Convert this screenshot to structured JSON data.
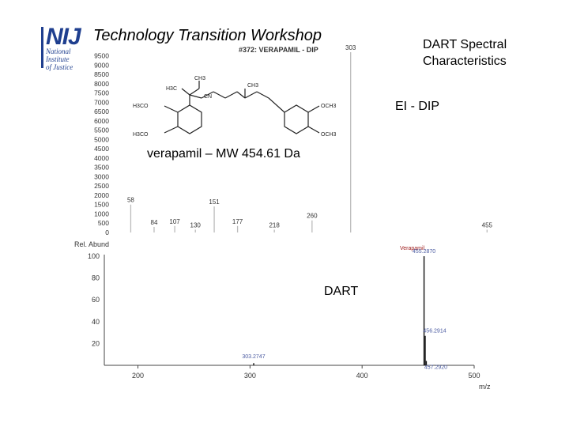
{
  "header": {
    "title": "Technology Transition Workshop",
    "logo_text": "NIJ",
    "logo_sub": [
      "National",
      "Institute",
      "of Justice"
    ]
  },
  "side_title": [
    "DART Spectral",
    "Characteristics"
  ],
  "molecule": {
    "caption": "verapamil – MW 454.61 Da",
    "groups": [
      "CH3",
      "H3C",
      "CN",
      "CH3",
      "H3CO",
      "H3CO",
      "OCH3",
      "OCH3"
    ]
  },
  "ei_label": "EI - DIP",
  "dart_label": "DART",
  "chart_data": [
    {
      "type": "bar",
      "title": "#372: VERAPAMIL - DIP",
      "ylim": [
        0,
        9700
      ],
      "yticks": [
        0,
        500,
        1000,
        1500,
        2000,
        2500,
        3000,
        3500,
        4000,
        4500,
        5000,
        5500,
        6000,
        6500,
        7000,
        7500,
        8000,
        8500,
        9000,
        9500
      ],
      "xlim": [
        40,
        460
      ],
      "xticks": [
        40,
        60,
        80,
        100,
        120,
        140,
        160,
        180,
        200,
        220,
        240,
        260,
        280,
        300,
        320,
        340,
        360,
        380,
        400,
        420,
        440
      ],
      "x": [
        58,
        84,
        107,
        130,
        151,
        177,
        218,
        260,
        303,
        455
      ],
      "values": [
        1500,
        300,
        350,
        150,
        1400,
        350,
        150,
        650,
        9700,
        150
      ],
      "peak_labels": [
        "58",
        "84",
        "107",
        "130",
        "151",
        "177",
        "218",
        "260",
        "303",
        "455"
      ]
    },
    {
      "type": "bar",
      "ylabel": "Rel. Abund",
      "xlabel": "m/z",
      "ylim": [
        0,
        100
      ],
      "yticks": [
        20,
        40,
        60,
        80,
        100
      ],
      "xlim": [
        170,
        500
      ],
      "xticks": [
        200,
        300,
        400,
        500
      ],
      "legend": "Verapamil",
      "x": [
        303.2747,
        455.287,
        456.2914,
        457.292
      ],
      "values": [
        2,
        100,
        27,
        4
      ],
      "peak_labels": [
        "303.2747",
        "455.2870",
        "456.2914",
        "457.2920"
      ]
    }
  ]
}
